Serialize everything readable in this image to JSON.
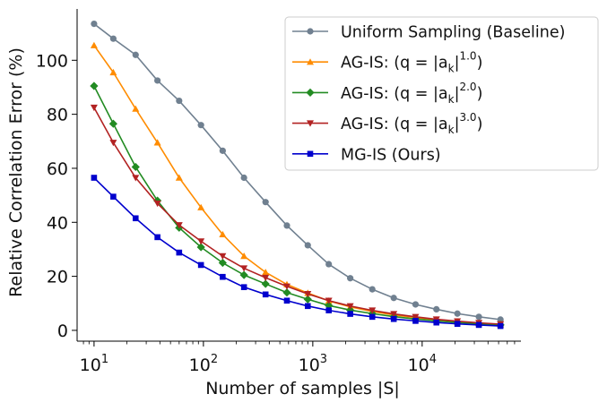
{
  "chart_data": {
    "type": "line",
    "title": "",
    "xlabel": "Number of samples |S|",
    "ylabel": "Relative Correlation Error (%)",
    "xscale": "log",
    "xlim": [
      7,
      80000
    ],
    "ylim": [
      -4,
      119
    ],
    "x_ticks": [
      {
        "value": 10,
        "base": "10",
        "exp": "1"
      },
      {
        "value": 100,
        "base": "10",
        "exp": "2"
      },
      {
        "value": 1000,
        "base": "10",
        "exp": "3"
      },
      {
        "value": 10000,
        "base": "10",
        "exp": "4"
      }
    ],
    "y_ticks": [
      {
        "value": 0,
        "label": "0"
      },
      {
        "value": 20,
        "label": "20"
      },
      {
        "value": 40,
        "label": "40"
      },
      {
        "value": 60,
        "label": "60"
      },
      {
        "value": 80,
        "label": "80"
      },
      {
        "value": 100,
        "label": "100"
      }
    ],
    "legend_position": "top-right",
    "x": [
      10,
      15,
      24,
      38,
      60,
      95,
      150,
      235,
      370,
      580,
      900,
      1400,
      2200,
      3500,
      5500,
      8700,
      13500,
      21000,
      33000,
      52000
    ],
    "series": [
      {
        "name": "Uniform Sampling (Baseline)",
        "legend": {
          "prefix": "Uniform Sampling (Baseline)",
          "exp": "",
          "suffix": ""
        },
        "color": "#708090",
        "marker": "circle",
        "values": [
          113.5,
          108,
          102,
          92.5,
          85,
          76,
          66.5,
          56.5,
          47.5,
          38.8,
          31.5,
          24.5,
          19.3,
          15.2,
          12,
          9.6,
          7.8,
          6.2,
          5,
          4
        ]
      },
      {
        "name": "AG-IS: (q = |a_k|^1.0)",
        "legend": {
          "prefix": "AG-IS: (q = |a",
          "exp": "1.0",
          "suffix": ")"
        },
        "color": "#ff8c00",
        "marker": "triangle-up",
        "values": [
          105.5,
          95.5,
          82,
          69.5,
          56.5,
          45.5,
          35.5,
          27.5,
          21.5,
          17,
          13.8,
          10.9,
          8.7,
          7,
          5.7,
          4.7,
          3.9,
          3.2,
          2.6,
          2.2
        ]
      },
      {
        "name": "AG-IS: (q = |a_k|^2.0)",
        "legend": {
          "prefix": "AG-IS: (q = |a",
          "exp": "2.0",
          "suffix": ")"
        },
        "color": "#228b22",
        "marker": "diamond",
        "values": [
          90.5,
          76.5,
          60.5,
          48,
          38,
          30.8,
          25,
          20.5,
          17.2,
          14,
          11.5,
          9.2,
          7.5,
          6.2,
          5.1,
          4.2,
          3.5,
          2.9,
          2.4,
          2
        ]
      },
      {
        "name": "AG-IS: (q = |a_k|^3.0)",
        "legend": {
          "prefix": "AG-IS: (q = |a",
          "exp": "3.0",
          "suffix": ")"
        },
        "color": "#b22222",
        "marker": "triangle-down",
        "values": [
          82.5,
          69.5,
          56.5,
          47,
          39,
          33,
          27.5,
          23,
          19.5,
          16.3,
          13.5,
          11,
          9,
          7.4,
          6.1,
          5,
          4.1,
          3.4,
          2.8,
          2.3
        ]
      },
      {
        "name": "MG-IS (Ours)",
        "legend": {
          "prefix": "MG-IS (Ours)",
          "exp": "",
          "suffix": ""
        },
        "color": "#0000cd",
        "marker": "square",
        "values": [
          56.5,
          49.5,
          41.5,
          34.5,
          28.8,
          24.2,
          19.8,
          16,
          13.3,
          11,
          9,
          7.4,
          6.1,
          5,
          4.2,
          3.5,
          2.9,
          2.4,
          2,
          1.6
        ]
      }
    ]
  }
}
